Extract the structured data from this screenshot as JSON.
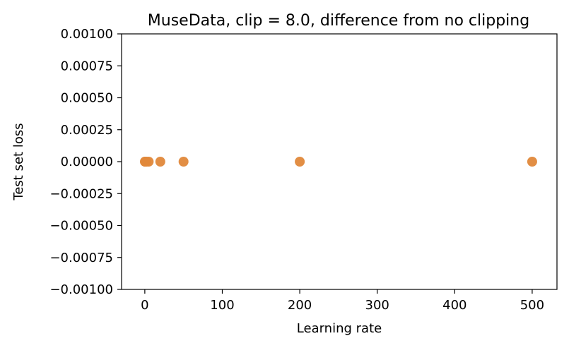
{
  "chart_data": {
    "type": "scatter",
    "title": "MuseData, clip = 8.0, difference from no clipping",
    "xlabel": "Learning rate",
    "ylabel": "Test set loss",
    "xlim": [
      -30,
      532
    ],
    "ylim": [
      -0.001,
      0.001
    ],
    "xticks": [
      0,
      100,
      200,
      300,
      400,
      500
    ],
    "xtick_labels": [
      "0",
      "100",
      "200",
      "300",
      "400",
      "500"
    ],
    "yticks": [
      0.001,
      0.00075,
      0.0005,
      0.00025,
      0,
      -0.00025,
      -0.0005,
      -0.00075,
      -0.001
    ],
    "ytick_labels": [
      "0.00100",
      "0.00075",
      "0.00050",
      "0.00025",
      "0.00000",
      "−0.00025",
      "−0.00050",
      "−0.00075",
      "−0.00100"
    ],
    "grid": false,
    "series": [
      {
        "color": "#e0883a",
        "points": [
          {
            "x": 0.1,
            "y": 0
          },
          {
            "x": 0.5,
            "y": 0
          },
          {
            "x": 1,
            "y": 0
          },
          {
            "x": 2,
            "y": 0
          },
          {
            "x": 5,
            "y": 0
          },
          {
            "x": 20,
            "y": 0
          },
          {
            "x": 50,
            "y": 0
          },
          {
            "x": 200,
            "y": 0
          },
          {
            "x": 500,
            "y": 0
          }
        ]
      }
    ]
  }
}
